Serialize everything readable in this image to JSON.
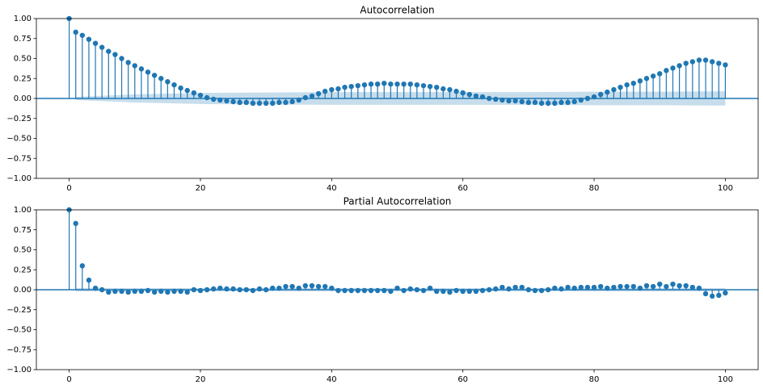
{
  "chart_data": [
    {
      "type": "stem",
      "title": "Autocorrelation",
      "color": "#1f77b4",
      "x": [
        0,
        1,
        2,
        3,
        4,
        5,
        6,
        7,
        8,
        9,
        10,
        11,
        12,
        13,
        14,
        15,
        16,
        17,
        18,
        19,
        20,
        21,
        22,
        23,
        24,
        25,
        26,
        27,
        28,
        29,
        30,
        31,
        32,
        33,
        34,
        35,
        36,
        37,
        38,
        39,
        40,
        41,
        42,
        43,
        44,
        45,
        46,
        47,
        48,
        49,
        50,
        51,
        52,
        53,
        54,
        55,
        56,
        57,
        58,
        59,
        60,
        61,
        62,
        63,
        64,
        65,
        66,
        67,
        68,
        69,
        70,
        71,
        72,
        73,
        74,
        75,
        76,
        77,
        78,
        79,
        80,
        81,
        82,
        83,
        84,
        85,
        86,
        87,
        88,
        89,
        90,
        91,
        92,
        93,
        94,
        95,
        96,
        97,
        98,
        99,
        100
      ],
      "values": [
        1,
        0.83,
        0.79,
        0.74,
        0.69,
        0.64,
        0.59,
        0.55,
        0.5,
        0.45,
        0.41,
        0.37,
        0.33,
        0.29,
        0.25,
        0.21,
        0.17,
        0.13,
        0.1,
        0.07,
        0.04,
        0.01,
        -0.01,
        -0.02,
        -0.03,
        -0.04,
        -0.05,
        -0.05,
        -0.06,
        -0.06,
        -0.06,
        -0.06,
        -0.05,
        -0.05,
        -0.04,
        -0.02,
        0.01,
        0.03,
        0.06,
        0.09,
        0.11,
        0.12,
        0.14,
        0.15,
        0.16,
        0.17,
        0.18,
        0.18,
        0.19,
        0.18,
        0.18,
        0.18,
        0.18,
        0.17,
        0.16,
        0.15,
        0.14,
        0.12,
        0.11,
        0.09,
        0.07,
        0.05,
        0.03,
        0.02,
        0,
        -0.01,
        -0.02,
        -0.03,
        -0.03,
        -0.04,
        -0.05,
        -0.05,
        -0.06,
        -0.06,
        -0.06,
        -0.05,
        -0.05,
        -0.04,
        -0.02,
        0,
        0.02,
        0.05,
        0.08,
        0.11,
        0.14,
        0.17,
        0.19,
        0.22,
        0.25,
        0.28,
        0.31,
        0.35,
        0.38,
        0.41,
        0.44,
        0.46,
        0.48,
        0.48,
        0.46,
        0.44,
        0.42
      ],
      "band": {
        "x": [
          1,
          10,
          20,
          30,
          40,
          50,
          60,
          70,
          80,
          90,
          100
        ],
        "upper": [
          0.02,
          0.05,
          0.07,
          0.075,
          0.08,
          0.08,
          0.08,
          0.08,
          0.085,
          0.085,
          0.09
        ],
        "lower": [
          -0.02,
          -0.05,
          -0.07,
          -0.075,
          -0.08,
          -0.08,
          -0.08,
          -0.08,
          -0.085,
          -0.085,
          -0.09
        ]
      },
      "xlim": [
        -5,
        105
      ],
      "ylim": [
        -1,
        1
      ],
      "xticks": [
        0,
        20,
        40,
        60,
        80,
        100
      ],
      "yticks": [
        {
          "value": -1,
          "label": "−1.00"
        },
        {
          "value": -0.75,
          "label": "−0.75"
        },
        {
          "value": -0.5,
          "label": "−0.50"
        },
        {
          "value": -0.25,
          "label": "−0.25"
        },
        {
          "value": 0,
          "label": "0.00"
        },
        {
          "value": 0.25,
          "label": "0.25"
        },
        {
          "value": 0.5,
          "label": "0.50"
        },
        {
          "value": 0.75,
          "label": "0.75"
        },
        {
          "value": 1,
          "label": "1.00"
        }
      ]
    },
    {
      "type": "stem",
      "title": "Partial Autocorrelation",
      "color": "#1f77b4",
      "x": [
        0,
        1,
        2,
        3,
        4,
        5,
        6,
        7,
        8,
        9,
        10,
        11,
        12,
        13,
        14,
        15,
        16,
        17,
        18,
        19,
        20,
        21,
        22,
        23,
        24,
        25,
        26,
        27,
        28,
        29,
        30,
        31,
        32,
        33,
        34,
        35,
        36,
        37,
        38,
        39,
        40,
        41,
        42,
        43,
        44,
        45,
        46,
        47,
        48,
        49,
        50,
        51,
        52,
        53,
        54,
        55,
        56,
        57,
        58,
        59,
        60,
        61,
        62,
        63,
        64,
        65,
        66,
        67,
        68,
        69,
        70,
        71,
        72,
        73,
        74,
        75,
        76,
        77,
        78,
        79,
        80,
        81,
        82,
        83,
        84,
        85,
        86,
        87,
        88,
        89,
        90,
        91,
        92,
        93,
        94,
        95,
        96,
        97,
        98,
        99,
        100
      ],
      "values": [
        1,
        0.83,
        0.3,
        0.12,
        0.02,
        0,
        -0.03,
        -0.02,
        -0.02,
        -0.03,
        -0.02,
        -0.02,
        -0.01,
        -0.03,
        -0.02,
        -0.03,
        -0.02,
        -0.02,
        -0.03,
        0,
        -0.01,
        0,
        0.01,
        0.02,
        0.01,
        0.01,
        0,
        0,
        -0.01,
        0.01,
        0,
        0.02,
        0.02,
        0.04,
        0.04,
        0.02,
        0.05,
        0.05,
        0.04,
        0.04,
        0.02,
        -0.01,
        -0.01,
        -0.01,
        -0.01,
        -0.01,
        -0.01,
        -0.01,
        -0.01,
        -0.02,
        0.02,
        -0.01,
        0.01,
        0,
        -0.01,
        0.02,
        -0.02,
        -0.02,
        -0.03,
        -0.01,
        -0.02,
        -0.02,
        -0.02,
        -0.01,
        0,
        0.01,
        0.03,
        0.01,
        0.03,
        0.03,
        0,
        -0.01,
        -0.01,
        0,
        0.02,
        0.01,
        0.03,
        0.02,
        0.03,
        0.03,
        0.03,
        0.04,
        0.02,
        0.03,
        0.04,
        0.04,
        0.04,
        0.02,
        0.05,
        0.04,
        0.07,
        0.04,
        0.07,
        0.05,
        0.05,
        0.03,
        0.02,
        -0.05,
        -0.08,
        -0.07,
        -0.04
      ],
      "band": {
        "x": [
          1,
          100
        ],
        "upper": [
          0.02,
          0.02
        ],
        "lower": [
          -0.02,
          -0.02
        ]
      },
      "xlim": [
        -5,
        105
      ],
      "ylim": [
        -1,
        1
      ],
      "xticks": [
        0,
        20,
        40,
        60,
        80,
        100
      ],
      "yticks": [
        {
          "value": -1,
          "label": "−1.00"
        },
        {
          "value": -0.75,
          "label": "−0.75"
        },
        {
          "value": -0.5,
          "label": "−0.50"
        },
        {
          "value": -0.25,
          "label": "−0.25"
        },
        {
          "value": 0,
          "label": "0.00"
        },
        {
          "value": 0.25,
          "label": "0.25"
        },
        {
          "value": 0.5,
          "label": "0.50"
        },
        {
          "value": 0.75,
          "label": "0.75"
        },
        {
          "value": 1,
          "label": "1.00"
        }
      ]
    }
  ]
}
